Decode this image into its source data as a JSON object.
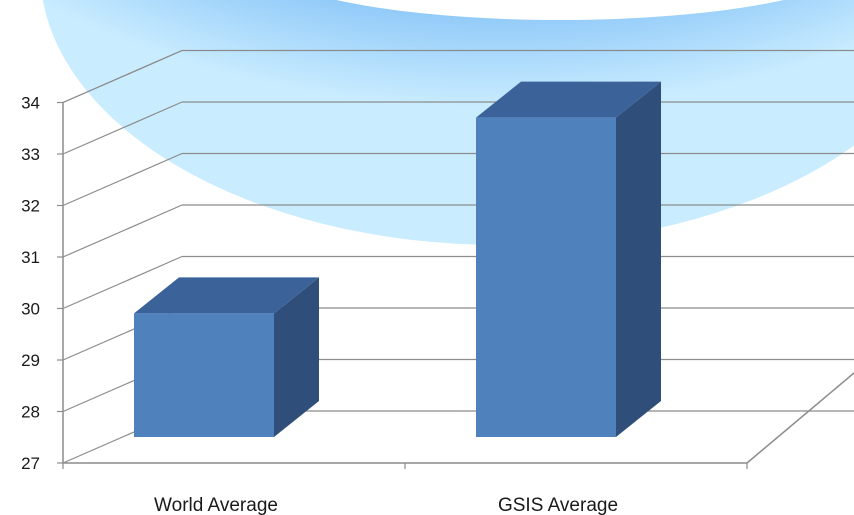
{
  "chart_data": {
    "type": "bar",
    "title": "",
    "xlabel": "",
    "ylabel": "",
    "categories": [
      "World Average",
      "GSIS Average"
    ],
    "values": [
      30.1,
      33.9
    ],
    "ylim": [
      27,
      34
    ],
    "yticks": [
      "27",
      "28",
      "29",
      "30",
      "31",
      "32",
      "33",
      "34"
    ],
    "grid": true,
    "legend": "none",
    "colors": {
      "bar_front": "#4f81bd",
      "bar_top": "#3b6399",
      "bar_side": "#2f4f7a",
      "gridline": "#8c8c8c",
      "axis_text": "#1a1a1a"
    }
  }
}
